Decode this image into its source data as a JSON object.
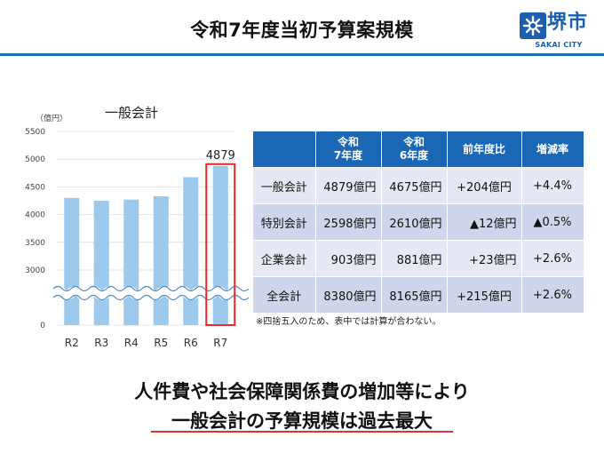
{
  "header": {
    "title": "令和7年度当初予算案規模",
    "logo_name": "堺市",
    "logo_sub": "SAKAI CITY"
  },
  "chart": {
    "title": "一般会計",
    "unit_label": "（億円）",
    "highlight_label": "4879",
    "colors": {
      "bar": "#9cc9ec",
      "highlight": "#e8282a",
      "break": "#4f8bc4"
    }
  },
  "chart_data": {
    "type": "bar",
    "categories": [
      "R2",
      "R3",
      "R4",
      "R5",
      "R6",
      "R7"
    ],
    "values": [
      4300,
      4250,
      4270,
      4330,
      4675,
      4879
    ],
    "title": "一般会計",
    "ylabel": "（億円）",
    "yticks": [
      "0",
      "3000",
      "3500",
      "4000",
      "4500",
      "5000",
      "5500"
    ],
    "ylim": [
      2500,
      5500
    ],
    "axis_break": true,
    "data_labels": {
      "R7": "4879"
    },
    "highlight_category": "R7"
  },
  "table": {
    "headers": [
      "",
      "令和\n7年度",
      "令和\n6年度",
      "前年度比",
      "増減率"
    ],
    "rows": [
      {
        "name": "一般会計",
        "r7": "4879億円",
        "r6": "4675億円",
        "diff": "+204億円",
        "rate": "+4.4%"
      },
      {
        "name": "特別会計",
        "r7": "2598億円",
        "r6": "2610億円",
        "diff": "▲12億円",
        "rate": "▲0.5%"
      },
      {
        "name": "企業会計",
        "r7": "903億円",
        "r6": "881億円",
        "diff": "+23億円",
        "rate": "+2.6%"
      },
      {
        "name": "全会計",
        "r7": "8380億円",
        "r6": "8165億円",
        "diff": "+215億円",
        "rate": "+2.6%"
      }
    ],
    "note": "※四捨五入のため、表中では計算が合わない。"
  },
  "message": {
    "line1": "人件費や社会保障関係費の増加等により",
    "line2": "一般会計の予算規模は過去最大"
  }
}
